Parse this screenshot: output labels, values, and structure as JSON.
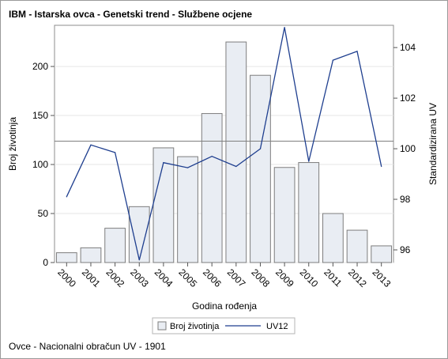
{
  "title": "IBM - Istarska ovca - Genetski trend - Službene ocjene",
  "footnote": "Ovce - Nacionalni obračun UV - 1901",
  "chart_data": {
    "type": "bar",
    "categories": [
      "2000",
      "2001",
      "2002",
      "2003",
      "2004",
      "2005",
      "2006",
      "2007",
      "2008",
      "2009",
      "2010",
      "2011",
      "2012",
      "2013"
    ],
    "series": [
      {
        "name": "Broj životinja",
        "type": "bar",
        "axis": "left",
        "values": [
          10,
          15,
          35,
          57,
          117,
          108,
          152,
          225,
          191,
          97,
          102,
          50,
          33,
          17
        ],
        "fill": "#e9edf3",
        "stroke": "#7d7d7d"
      },
      {
        "name": "UV12",
        "type": "line",
        "axis": "right",
        "values": [
          98.1,
          100.15,
          99.85,
          95.6,
          99.45,
          99.25,
          99.7,
          99.3,
          100.0,
          104.8,
          99.5,
          103.5,
          103.85,
          99.3
        ],
        "stroke": "#1f3f8f"
      }
    ],
    "xlabel": "Godina rođenja",
    "ylabel": "Broj životinja",
    "y2label": "Standardizirana UV",
    "ylim": [
      0,
      242
    ],
    "yticks": [
      0,
      50,
      100,
      150,
      200
    ],
    "y2lim": [
      95.5,
      104.88
    ],
    "y2ticks": [
      96,
      98,
      100,
      102,
      104
    ],
    "reference_line": {
      "axis": "right",
      "value": 100.3,
      "color": "#7f7f7f"
    },
    "grid": "horizontal",
    "legend": "bottom"
  }
}
